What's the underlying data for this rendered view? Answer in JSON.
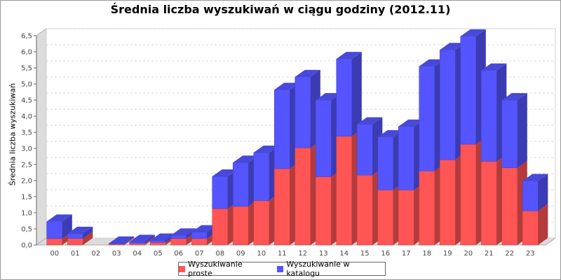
{
  "chart_data": {
    "type": "bar",
    "stacked": true,
    "three_d": true,
    "title": "Średnia liczba wyszukiwań w ciągu godziny (2012.11)",
    "xlabel": "",
    "ylabel": "Średnia liczba wyszukiwań",
    "categories": [
      "00",
      "01",
      "02",
      "03",
      "04",
      "05",
      "06",
      "07",
      "08",
      "09",
      "10",
      "11",
      "12",
      "13",
      "14",
      "15",
      "16",
      "17",
      "18",
      "19",
      "20",
      "21",
      "22",
      "23"
    ],
    "ylim": [
      0,
      6.5
    ],
    "yticks": [
      "0,0",
      "0,5",
      "1,0",
      "1,5",
      "2,0",
      "2,5",
      "3,0",
      "3,5",
      "4,0",
      "4,5",
      "5,0",
      "5,5",
      "6,0",
      "6,5"
    ],
    "grid": true,
    "legend_position": "bottom",
    "series": [
      {
        "name": "Wyszukiwanie proste",
        "color": "#ff5555",
        "values": [
          0.2,
          0.2,
          0.0,
          0.03,
          0.05,
          0.08,
          0.2,
          0.2,
          1.13,
          1.2,
          1.38,
          2.37,
          3.02,
          2.12,
          3.38,
          2.17,
          1.71,
          1.71,
          2.3,
          2.65,
          3.13,
          2.6,
          2.4,
          1.06
        ]
      },
      {
        "name": "Wyszukiwanie w katalogu",
        "color": "#5555ff",
        "values": [
          0.53,
          0.15,
          0.0,
          0.02,
          0.05,
          0.06,
          0.1,
          0.2,
          1.0,
          1.36,
          1.49,
          2.45,
          2.2,
          2.38,
          2.4,
          1.58,
          1.64,
          1.97,
          3.25,
          3.41,
          3.35,
          2.82,
          2.1,
          0.93
        ]
      }
    ]
  }
}
